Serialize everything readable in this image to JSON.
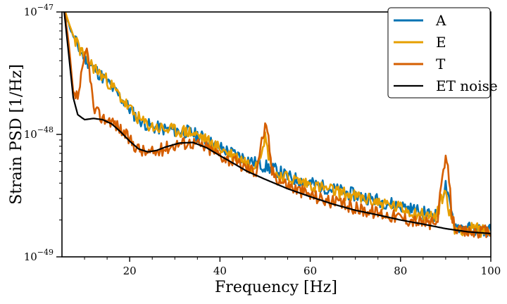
{
  "chart_data": {
    "type": "line",
    "xlabel": "Frequency [Hz]",
    "ylabel": "Strain PSD [1/Hz]",
    "xlim": [
      5,
      100
    ],
    "ylim": [
      1e-49,
      1e-47
    ],
    "yscale": "log",
    "grid": false,
    "legend_position": "top-right",
    "x_ticks": [
      20,
      40,
      60,
      80,
      100
    ],
    "y_ticks": [
      {
        "base": "10",
        "exp": "−49",
        "value": 1e-49
      },
      {
        "base": "10",
        "exp": "−48",
        "value": 1e-48
      },
      {
        "base": "10",
        "exp": "−47",
        "value": 1e-47
      }
    ],
    "series": [
      {
        "name": "A",
        "color": "#0072B2",
        "noise_seed": 11,
        "points": [
          [
            5.5,
            1.05e-47
          ],
          [
            7,
            7e-48
          ],
          [
            9,
            4.8e-48
          ],
          [
            11,
            3.8e-48
          ],
          [
            13,
            3.2e-48
          ],
          [
            15,
            2.7e-48
          ],
          [
            17,
            2.2e-48
          ],
          [
            19,
            1.8e-48
          ],
          [
            21,
            1.45e-48
          ],
          [
            23,
            1.25e-48
          ],
          [
            25,
            1.15e-48
          ],
          [
            28,
            1.1e-48
          ],
          [
            30,
            1.08e-48
          ],
          [
            33,
            1.05e-48
          ],
          [
            36,
            9.5e-49
          ],
          [
            38,
            8.5e-49
          ],
          [
            40,
            7.8e-49
          ],
          [
            42,
            7.2e-49
          ],
          [
            45,
            6.5e-49
          ],
          [
            48,
            5.8e-49
          ],
          [
            50,
            5.5e-49
          ],
          [
            53,
            5e-49
          ],
          [
            55,
            4.5e-49
          ],
          [
            58,
            4.2e-49
          ],
          [
            62,
            3.8e-49
          ],
          [
            66,
            3.5e-49
          ],
          [
            70,
            3.2e-49
          ],
          [
            75,
            2.9e-49
          ],
          [
            80,
            2.6e-49
          ],
          [
            85,
            2.3e-49
          ],
          [
            88,
            2.2e-49
          ],
          [
            89,
            3e-49
          ],
          [
            90,
            3.8e-49
          ],
          [
            91,
            2.5e-49
          ],
          [
            92,
            1.8e-49
          ],
          [
            95,
            1.7e-49
          ],
          [
            100,
            1.65e-49
          ]
        ]
      },
      {
        "name": "E",
        "color": "#E69F00",
        "noise_seed": 23,
        "points": [
          [
            5.5,
            1.05e-47
          ],
          [
            7,
            7.2e-48
          ],
          [
            9,
            4.9e-48
          ],
          [
            11,
            3.9e-48
          ],
          [
            13,
            3.25e-48
          ],
          [
            15,
            2.75e-48
          ],
          [
            17,
            2.25e-48
          ],
          [
            19,
            1.8e-48
          ],
          [
            21,
            1.45e-48
          ],
          [
            23,
            1.25e-48
          ],
          [
            25,
            1.15e-48
          ],
          [
            28,
            1.1e-48
          ],
          [
            30,
            1.07e-48
          ],
          [
            33,
            1.05e-48
          ],
          [
            36,
            9.5e-49
          ],
          [
            38,
            8.4e-49
          ],
          [
            40,
            7.7e-49
          ],
          [
            42,
            7e-49
          ],
          [
            45,
            6.2e-49
          ],
          [
            47,
            5.6e-49
          ],
          [
            48.5,
            6.2e-49
          ],
          [
            49.5,
            8.5e-49
          ],
          [
            50,
            9.5e-49
          ],
          [
            50.7,
            7e-49
          ],
          [
            52,
            4.8e-49
          ],
          [
            55,
            4.4e-49
          ],
          [
            58,
            4.1e-49
          ],
          [
            62,
            3.7e-49
          ],
          [
            66,
            3.4e-49
          ],
          [
            70,
            3.1e-49
          ],
          [
            75,
            2.8e-49
          ],
          [
            80,
            2.5e-49
          ],
          [
            85,
            2.2e-49
          ],
          [
            88,
            2.1e-49
          ],
          [
            89,
            3e-49
          ],
          [
            90,
            3.4e-49
          ],
          [
            91,
            2.2e-49
          ],
          [
            92,
            1.7e-49
          ],
          [
            95,
            1.7e-49
          ],
          [
            100,
            1.6e-49
          ]
        ]
      },
      {
        "name": "T",
        "color": "#D55E00",
        "noise_seed": 37,
        "points": [
          [
            5.5,
            1.05e-47
          ],
          [
            6.5,
            5.5e-48
          ],
          [
            7.5,
            2.2e-48
          ],
          [
            8.5,
            2e-48
          ],
          [
            9.5,
            3.2e-48
          ],
          [
            10.5,
            5e-48
          ],
          [
            11.2,
            3.2e-48
          ],
          [
            12,
            1.6e-48
          ],
          [
            14,
            1.35e-48
          ],
          [
            16,
            1.3e-48
          ],
          [
            18,
            1.1e-48
          ],
          [
            20,
            9e-49
          ],
          [
            22,
            7.6e-49
          ],
          [
            24,
            7e-49
          ],
          [
            26,
            7.2e-49
          ],
          [
            28,
            7.8e-49
          ],
          [
            31,
            8.5e-49
          ],
          [
            34,
            8.6e-49
          ],
          [
            37,
            7.8e-49
          ],
          [
            40,
            6.8e-49
          ],
          [
            43,
            6e-49
          ],
          [
            46,
            5.3e-49
          ],
          [
            48,
            5e-49
          ],
          [
            49,
            8e-49
          ],
          [
            50,
            1.15e-48
          ],
          [
            50.8,
            9e-49
          ],
          [
            51.5,
            5e-49
          ],
          [
            53,
            4.3e-49
          ],
          [
            56,
            3.7e-49
          ],
          [
            60,
            3.2e-49
          ],
          [
            65,
            2.8e-49
          ],
          [
            70,
            2.5e-49
          ],
          [
            75,
            2.3e-49
          ],
          [
            80,
            2.1e-49
          ],
          [
            85,
            1.9e-49
          ],
          [
            88,
            1.85e-49
          ],
          [
            89,
            3.5e-49
          ],
          [
            90,
            6.5e-49
          ],
          [
            90.7,
            4.5e-49
          ],
          [
            91.5,
            2e-49
          ],
          [
            93,
            1.6e-49
          ],
          [
            96,
            1.6e-49
          ],
          [
            100,
            1.6e-49
          ]
        ]
      },
      {
        "name": "ET noise",
        "color": "#000000",
        "noise_seed": 0,
        "points": [
          [
            5.5,
            1e-47
          ],
          [
            6.5,
            4.5e-48
          ],
          [
            7.5,
            2e-48
          ],
          [
            8.5,
            1.45e-48
          ],
          [
            10,
            1.32e-48
          ],
          [
            12,
            1.35e-48
          ],
          [
            14,
            1.32e-48
          ],
          [
            16,
            1.22e-48
          ],
          [
            18,
            1.05e-48
          ],
          [
            20,
            8.8e-49
          ],
          [
            22,
            7.6e-49
          ],
          [
            24,
            7.2e-49
          ],
          [
            26,
            7.4e-49
          ],
          [
            28,
            7.9e-49
          ],
          [
            31,
            8.5e-49
          ],
          [
            34,
            8.6e-49
          ],
          [
            37,
            7.8e-49
          ],
          [
            40,
            6.7e-49
          ],
          [
            43,
            5.8e-49
          ],
          [
            46,
            5e-49
          ],
          [
            50,
            4.3e-49
          ],
          [
            55,
            3.6e-49
          ],
          [
            60,
            3.1e-49
          ],
          [
            65,
            2.7e-49
          ],
          [
            70,
            2.4e-49
          ],
          [
            75,
            2.2e-49
          ],
          [
            80,
            2e-49
          ],
          [
            85,
            1.85e-49
          ],
          [
            90,
            1.7e-49
          ],
          [
            95,
            1.6e-49
          ],
          [
            100,
            1.55e-49
          ]
        ]
      }
    ]
  }
}
